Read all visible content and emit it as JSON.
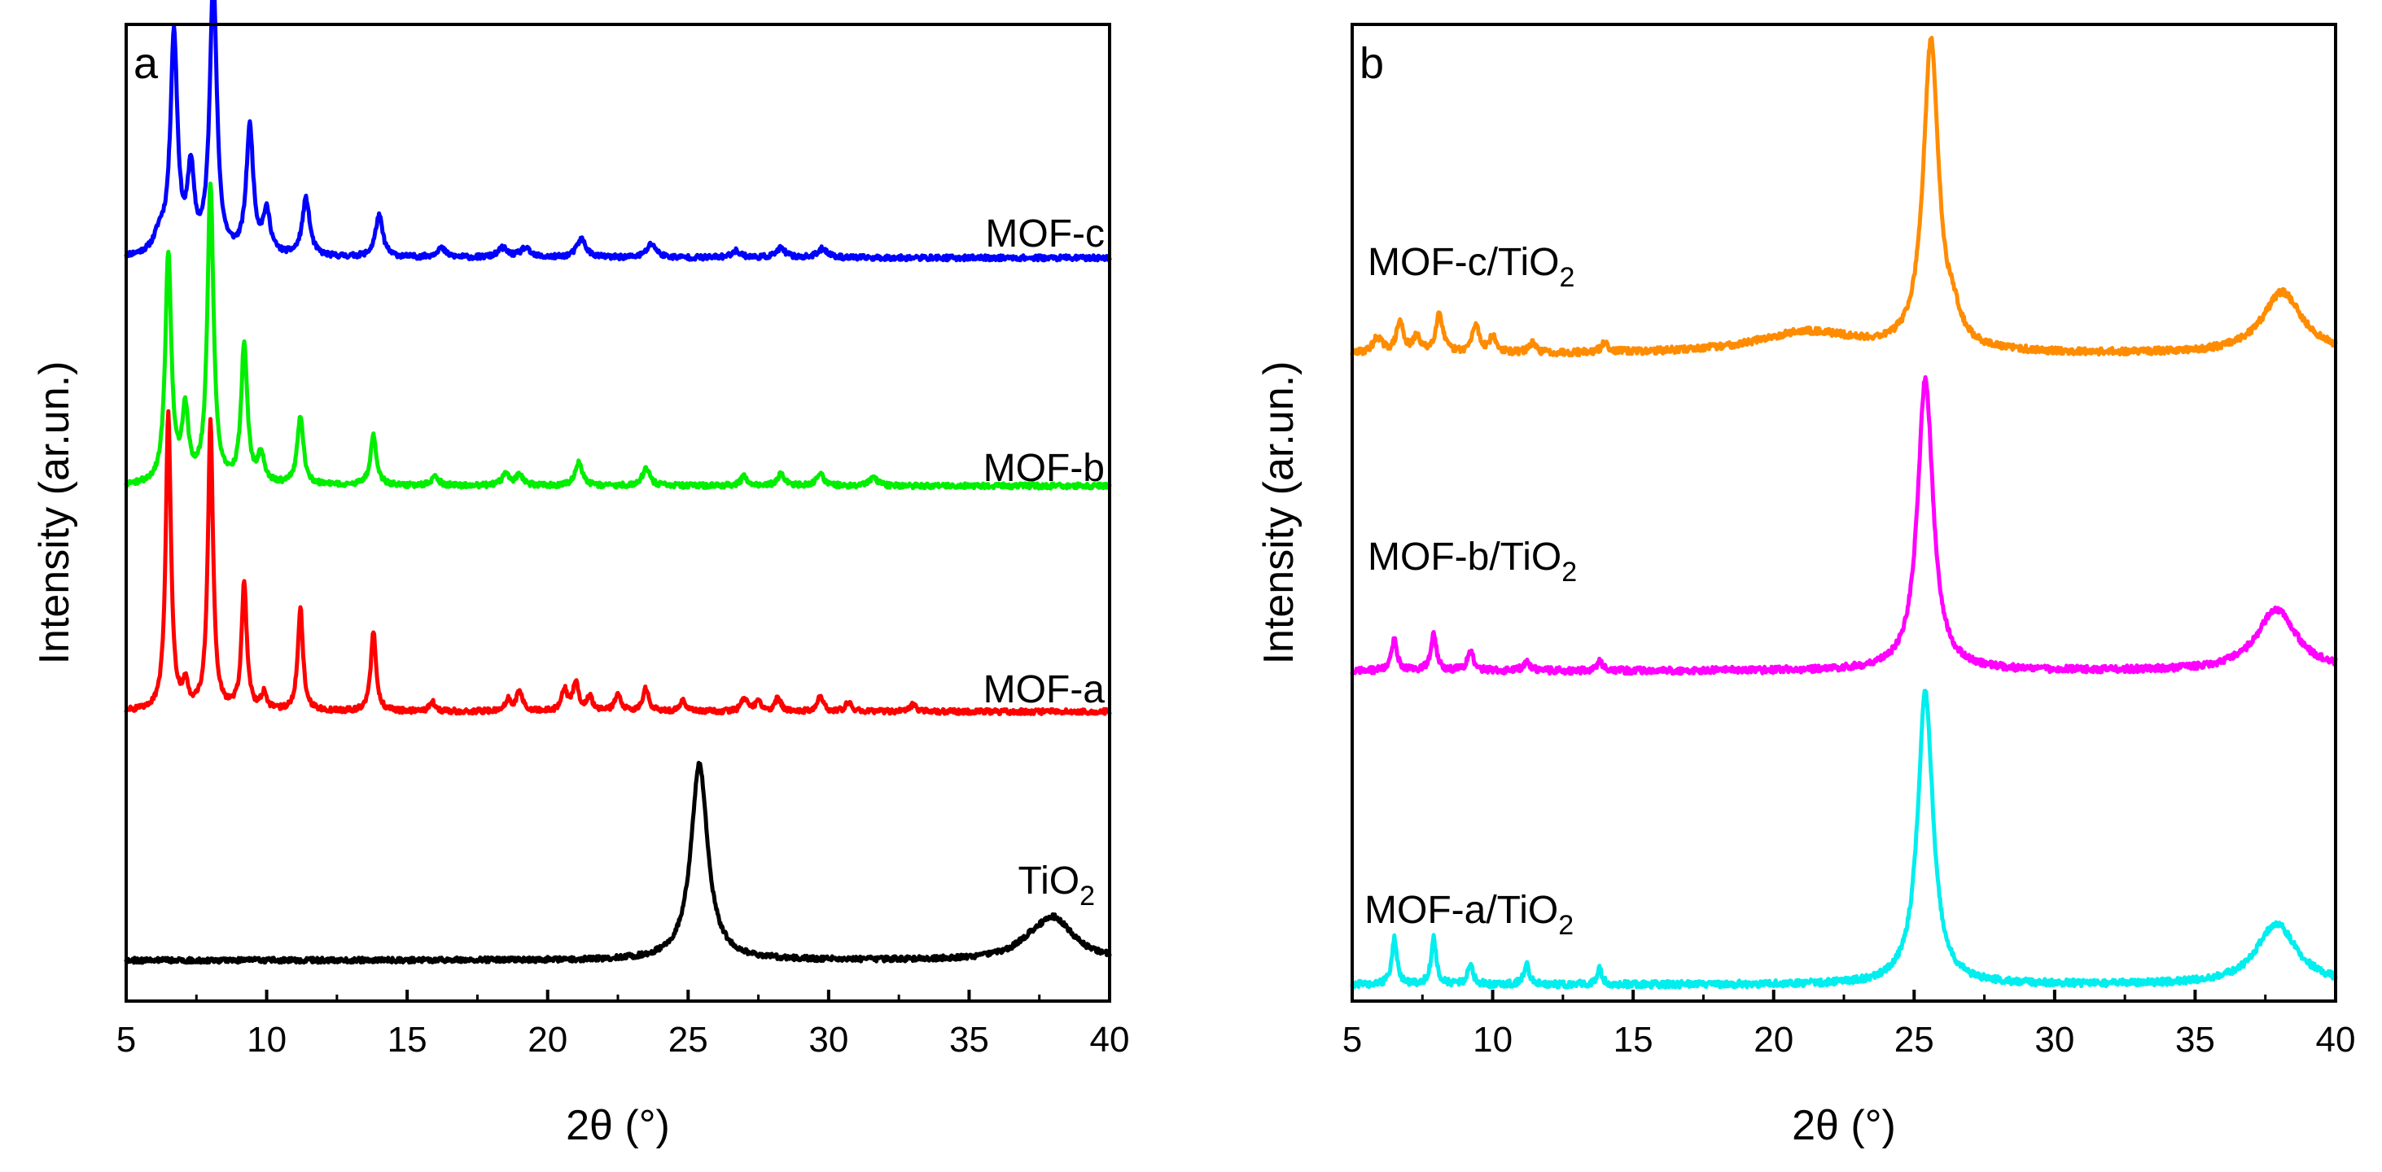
{
  "chart_data": [
    {
      "type": "line",
      "panel": "a",
      "xlabel": "2θ (°)",
      "ylabel": "Intensity  (ar.un.)",
      "xlim": [
        5,
        40
      ],
      "xticks": [
        "5",
        "10",
        "15",
        "20",
        "25",
        "30",
        "35",
        "40"
      ],
      "y_ticks_shown": false,
      "series": [
        {
          "name": "MOF-c",
          "color": "#0000ff",
          "baseline": 3.05,
          "peaks": [
            [
              6.2,
              0.08,
              0.25
            ],
            [
              6.7,
              0.95,
              0.15
            ],
            [
              7.3,
              0.35,
              0.14
            ],
            [
              8.1,
              1.2,
              0.15
            ],
            [
              9.4,
              0.55,
              0.15
            ],
            [
              10.0,
              0.18,
              0.16
            ],
            [
              11.4,
              0.25,
              0.16
            ],
            [
              14.0,
              0.18,
              0.16
            ],
            [
              16.2,
              0.04,
              0.2
            ],
            [
              18.4,
              0.04,
              0.2
            ],
            [
              19.2,
              0.04,
              0.2
            ],
            [
              21.2,
              0.08,
              0.2
            ],
            [
              23.7,
              0.06,
              0.2
            ],
            [
              26.7,
              0.03,
              0.2
            ],
            [
              28.3,
              0.04,
              0.2
            ],
            [
              29.8,
              0.04,
              0.2
            ]
          ]
        },
        {
          "name": "MOF-b",
          "color": "#00ee00",
          "baseline": 2.06,
          "peaks": [
            [
              6.5,
              1.0,
              0.13
            ],
            [
              7.1,
              0.3,
              0.14
            ],
            [
              8.0,
              1.3,
              0.13
            ],
            [
              9.2,
              0.6,
              0.13
            ],
            [
              9.8,
              0.12,
              0.15
            ],
            [
              11.2,
              0.3,
              0.13
            ],
            [
              13.8,
              0.22,
              0.13
            ],
            [
              16.0,
              0.04,
              0.15
            ],
            [
              18.5,
              0.05,
              0.15
            ],
            [
              19.0,
              0.05,
              0.15
            ],
            [
              21.1,
              0.1,
              0.15
            ],
            [
              23.5,
              0.08,
              0.15
            ],
            [
              27.0,
              0.04,
              0.15
            ],
            [
              28.3,
              0.05,
              0.15
            ],
            [
              29.7,
              0.05,
              0.15
            ],
            [
              31.6,
              0.04,
              0.15
            ]
          ]
        },
        {
          "name": "MOF-a",
          "color": "#ff0000",
          "baseline": 1.08,
          "peaks": [
            [
              6.5,
              1.3,
              0.11
            ],
            [
              7.1,
              0.1,
              0.12
            ],
            [
              8.0,
              1.25,
              0.11
            ],
            [
              9.2,
              0.55,
              0.11
            ],
            [
              9.9,
              0.07,
              0.12
            ],
            [
              11.2,
              0.45,
              0.11
            ],
            [
              13.8,
              0.35,
              0.11
            ],
            [
              15.9,
              0.04,
              0.12
            ],
            [
              18.6,
              0.05,
              0.12
            ],
            [
              19.0,
              0.09,
              0.12
            ],
            [
              20.6,
              0.09,
              0.12
            ],
            [
              21.0,
              0.13,
              0.12
            ],
            [
              21.5,
              0.06,
              0.12
            ],
            [
              22.5,
              0.08,
              0.12
            ],
            [
              23.5,
              0.1,
              0.12
            ],
            [
              24.8,
              0.05,
              0.12
            ],
            [
              27.0,
              0.06,
              0.12
            ],
            [
              27.5,
              0.05,
              0.12
            ],
            [
              28.2,
              0.06,
              0.12
            ],
            [
              29.7,
              0.07,
              0.12
            ],
            [
              30.7,
              0.04,
              0.12
            ],
            [
              33.0,
              0.03,
              0.12
            ]
          ]
        },
        {
          "name": "TiO2",
          "color": "#000000",
          "baseline": 0.0,
          "peaks": [
            [
              25.4,
              0.85,
              0.36
            ],
            [
              38.0,
              0.18,
              0.85
            ],
            [
              37.1,
              0.03,
              0.6
            ]
          ]
        }
      ],
      "annotations": [
        {
          "text": "MOF-c",
          "series": "MOF-c"
        },
        {
          "text": "MOF-b",
          "series": "MOF-b"
        },
        {
          "text": "MOF-a",
          "series": "MOF-a"
        },
        {
          "text": "TiO",
          "sub": "2",
          "series": "TiO2"
        }
      ]
    },
    {
      "type": "line",
      "panel": "b",
      "xlabel": "2θ (°)",
      "ylabel": "Intensity  (ar.un.)",
      "xlim": [
        5,
        40
      ],
      "xticks": [
        "5",
        "10",
        "15",
        "20",
        "25",
        "30",
        "35",
        "40"
      ],
      "y_ticks_shown": false,
      "series": [
        {
          "name": "MOF-c/TiO2",
          "color": "#ff8c00",
          "baseline": 2.05,
          "peaks": [
            [
              5.9,
              0.05,
              0.2
            ],
            [
              6.7,
              0.1,
              0.15
            ],
            [
              7.3,
              0.05,
              0.15
            ],
            [
              8.1,
              0.13,
              0.15
            ],
            [
              9.4,
              0.09,
              0.15
            ],
            [
              10.0,
              0.05,
              0.15
            ],
            [
              11.4,
              0.03,
              0.15
            ],
            [
              14.0,
              0.03,
              0.15
            ],
            [
              21.2,
              0.07,
              2.2
            ],
            [
              25.6,
              1.0,
              0.33
            ],
            [
              26.4,
              0.07,
              0.3
            ],
            [
              38.1,
              0.2,
              0.85
            ]
          ]
        },
        {
          "name": "MOF-b/TiO2",
          "color": "#ff00ff",
          "baseline": 1.02,
          "peaks": [
            [
              6.5,
              0.1,
              0.12
            ],
            [
              7.9,
              0.12,
              0.12
            ],
            [
              9.2,
              0.07,
              0.12
            ],
            [
              11.2,
              0.03,
              0.13
            ],
            [
              13.8,
              0.03,
              0.13
            ],
            [
              25.4,
              0.95,
              0.33
            ],
            [
              37.9,
              0.2,
              0.85
            ]
          ]
        },
        {
          "name": "MOF-a/TiO2",
          "color": "#00eeee",
          "baseline": 0.0,
          "peaks": [
            [
              6.5,
              0.15,
              0.11
            ],
            [
              7.9,
              0.15,
              0.11
            ],
            [
              9.2,
              0.07,
              0.11
            ],
            [
              11.2,
              0.07,
              0.11
            ],
            [
              13.8,
              0.05,
              0.11
            ],
            [
              25.4,
              0.95,
              0.33
            ],
            [
              37.9,
              0.2,
              0.85
            ]
          ]
        }
      ],
      "annotations": [
        {
          "text": "MOF-c/TiO",
          "sub": "2",
          "series": "MOF-c/TiO2"
        },
        {
          "text": "MOF-b/TiO",
          "sub": "2",
          "series": "MOF-b/TiO2"
        },
        {
          "text": "MOF-a/TiO",
          "sub": "2",
          "series": "MOF-a/TiO2"
        }
      ]
    }
  ]
}
